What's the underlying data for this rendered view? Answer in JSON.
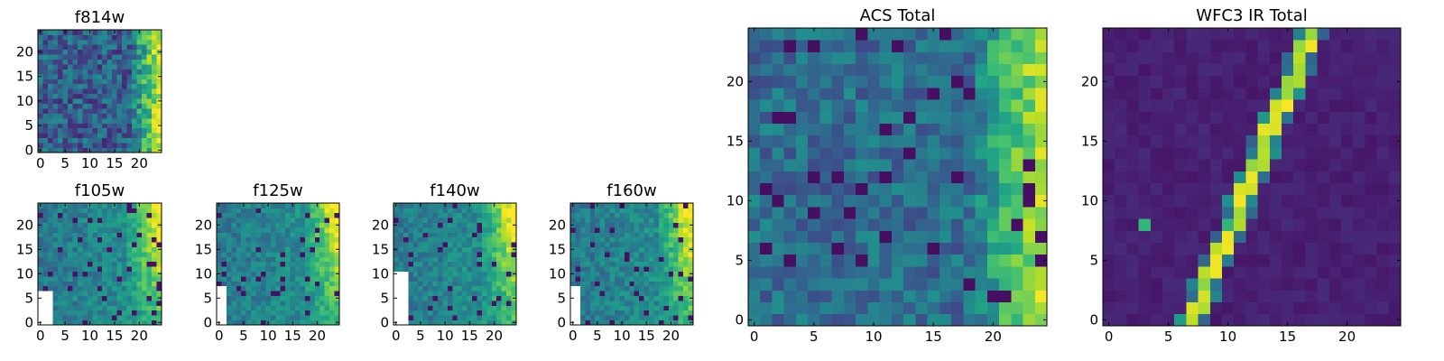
{
  "chart_data": [
    {
      "type": "heatmap",
      "title": "f814w",
      "colormap": "viridis",
      "grid": false,
      "xlim": [
        -0.5,
        24.5
      ],
      "ylim": [
        -0.5,
        24.5
      ],
      "xticks": [
        0,
        5,
        10,
        15,
        20
      ],
      "yticks": [
        0,
        5,
        10,
        15,
        20
      ],
      "xtick_labels": [
        "0",
        "5",
        "10",
        "15",
        "20"
      ],
      "ytick_labels": [
        "0",
        "5",
        "10",
        "15",
        "20"
      ],
      "bright_region": "right edge, x >= 19",
      "masked_region": "none"
    },
    {
      "type": "heatmap",
      "title": "f105w",
      "colormap": "viridis",
      "grid": false,
      "xlim": [
        -0.5,
        24.5
      ],
      "ylim": [
        -0.5,
        24.5
      ],
      "xticks": [
        0,
        5,
        10,
        15,
        20
      ],
      "yticks": [
        0,
        5,
        10,
        15,
        20
      ],
      "xtick_labels": [
        "0",
        "5",
        "10",
        "15",
        "20"
      ],
      "ytick_labels": [
        "0",
        "5",
        "10",
        "15",
        "20"
      ],
      "bright_region": "upper right, x >= 18",
      "masked_region": "lower left, x 0-2, y 0-6 (NaN)"
    },
    {
      "type": "heatmap",
      "title": "f125w",
      "colormap": "viridis",
      "grid": false,
      "xlim": [
        -0.5,
        24.5
      ],
      "ylim": [
        -0.5,
        24.5
      ],
      "xticks": [
        0,
        5,
        10,
        15,
        20
      ],
      "yticks": [
        0,
        5,
        10,
        15,
        20
      ],
      "xtick_labels": [
        "0",
        "5",
        "10",
        "15",
        "20"
      ],
      "ytick_labels": [
        "0",
        "5",
        "10",
        "15",
        "20"
      ],
      "bright_region": "upper right, x >= 20",
      "masked_region": "lower left, x 0-1, y 0-7 (NaN)"
    },
    {
      "type": "heatmap",
      "title": "f140w",
      "colormap": "viridis",
      "grid": false,
      "xlim": [
        -0.5,
        24.5
      ],
      "ylim": [
        -0.5,
        24.5
      ],
      "xticks": [
        0,
        5,
        10,
        15,
        20
      ],
      "yticks": [
        0,
        5,
        10,
        15,
        20
      ],
      "xtick_labels": [
        "0",
        "5",
        "10",
        "15",
        "20"
      ],
      "ytick_labels": [
        "0",
        "5",
        "10",
        "15",
        "20"
      ],
      "bright_region": "upper right, x >= 19",
      "masked_region": "lower left, x 0-2, y 0-10 (NaN)"
    },
    {
      "type": "heatmap",
      "title": "f160w",
      "colormap": "viridis",
      "grid": false,
      "xlim": [
        -0.5,
        24.5
      ],
      "ylim": [
        -0.5,
        24.5
      ],
      "xticks": [
        0,
        5,
        10,
        15,
        20
      ],
      "yticks": [
        0,
        5,
        10,
        15,
        20
      ],
      "xtick_labels": [
        "0",
        "5",
        "10",
        "15",
        "20"
      ],
      "ytick_labels": [
        "0",
        "5",
        "10",
        "15",
        "20"
      ],
      "bright_region": "upper right, x >= 19",
      "masked_region": "lower left, x 0-1, y 0-7 (NaN)"
    },
    {
      "type": "heatmap",
      "title": "ACS Total",
      "colormap": "viridis",
      "grid": false,
      "xlim": [
        -0.5,
        24.5
      ],
      "ylim": [
        -0.5,
        24.5
      ],
      "xticks": [
        0,
        5,
        10,
        15,
        20
      ],
      "yticks": [
        0,
        5,
        10,
        15,
        20
      ],
      "xtick_labels": [
        "0",
        "5",
        "10",
        "15",
        "20"
      ],
      "ytick_labels": [
        "0",
        "5",
        "10",
        "15",
        "20"
      ],
      "bright_region": "right edge, x >= 19, brightest at x 23-24",
      "masked_region": "none"
    },
    {
      "type": "heatmap",
      "title": "WFC3 IR Total",
      "colormap": "viridis",
      "grid": false,
      "xlim": [
        -0.5,
        24.5
      ],
      "ylim": [
        -0.5,
        24.5
      ],
      "xticks": [
        0,
        5,
        10,
        15,
        20
      ],
      "yticks": [
        0,
        5,
        10,
        15,
        20
      ],
      "xtick_labels": [
        "0",
        "5",
        "10",
        "15",
        "20"
      ],
      "ytick_labels": [
        "0",
        "5",
        "10",
        "15",
        "20"
      ],
      "bright_region": "diagonal streak from (7,0) to (17,24); isolated bright pixels at (3,8) and (10,8)",
      "masked_region": "none"
    }
  ]
}
